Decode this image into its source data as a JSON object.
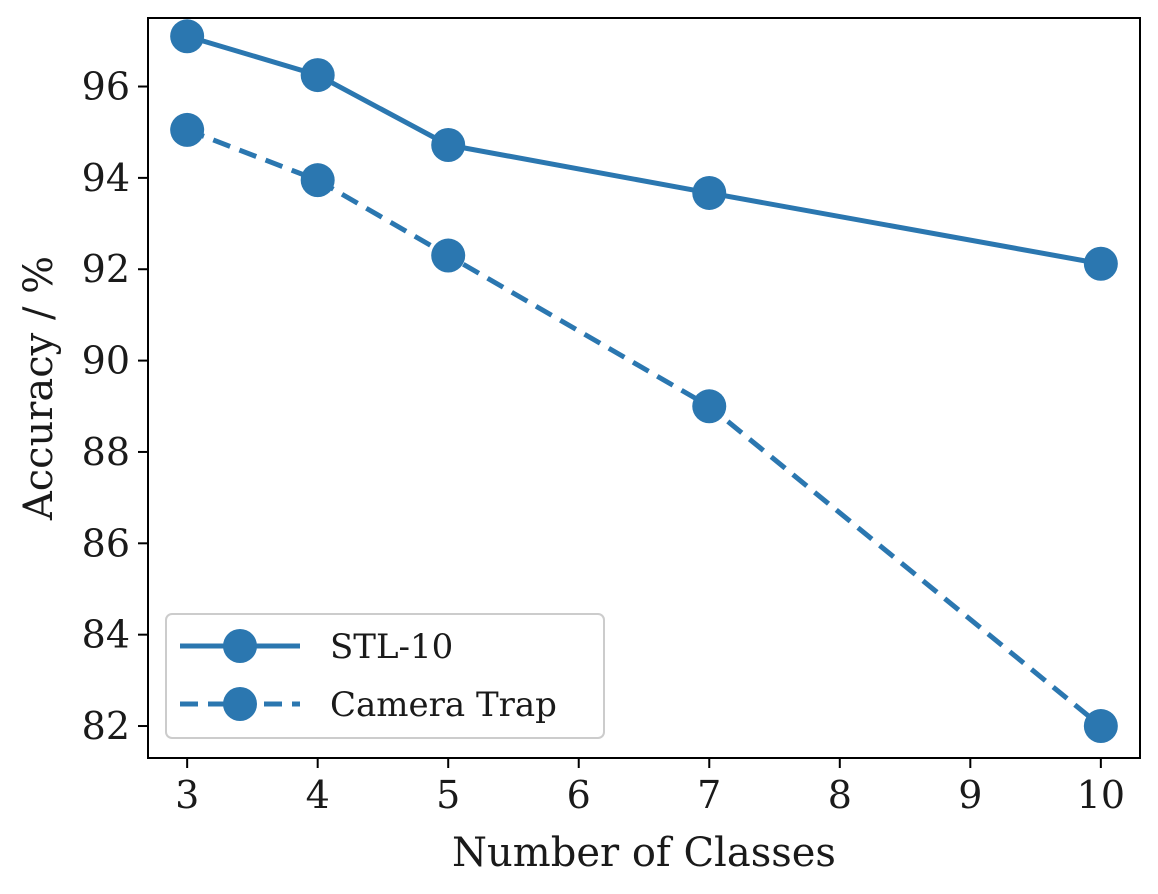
{
  "chart_data": {
    "type": "line",
    "title": "",
    "xlabel": "Number of Classes",
    "ylabel": "Accuracy / %",
    "x": [
      3,
      4,
      5,
      7,
      10
    ],
    "xticks": [
      3,
      4,
      5,
      6,
      7,
      8,
      9,
      10
    ],
    "yticks": [
      82,
      84,
      86,
      88,
      90,
      92,
      94,
      96
    ],
    "xlim": [
      2.7,
      10.3
    ],
    "ylim": [
      81.3,
      97.5
    ],
    "grid": false,
    "legend": "lower-left",
    "series": [
      {
        "name": "STL-10",
        "style": "solid",
        "color": "#2b77b0",
        "values": [
          97.1,
          96.25,
          94.72,
          93.67,
          92.12
        ]
      },
      {
        "name": "Camera Trap",
        "style": "dashed",
        "color": "#2b77b0",
        "values": [
          95.05,
          93.95,
          92.3,
          89.0,
          82.0
        ]
      }
    ]
  }
}
